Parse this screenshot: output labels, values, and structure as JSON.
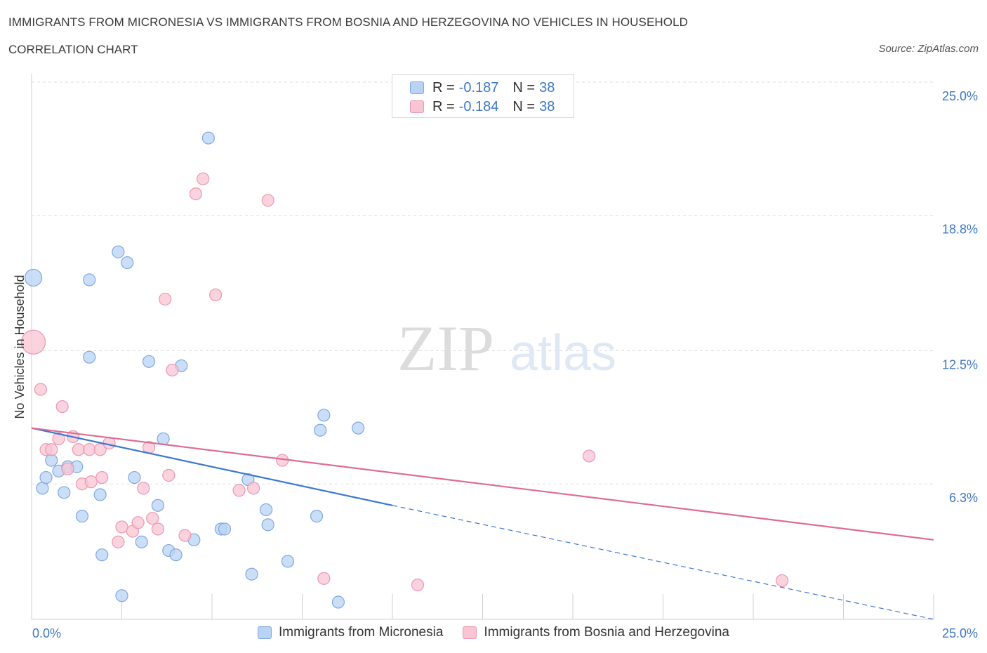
{
  "header": {
    "title": "IMMIGRANTS FROM MICRONESIA VS IMMIGRANTS FROM BOSNIA AND HERZEGOVINA NO VEHICLES IN HOUSEHOLD",
    "subtitle": "CORRELATION CHART",
    "source": "Source: ZipAtlas.com"
  },
  "watermark": {
    "zip": "ZIP",
    "atlas": "atlas"
  },
  "colors": {
    "blue_fill": "#b9d3f5",
    "blue_stroke": "#7fa9de",
    "blue_line": "#3a78d0",
    "pink_fill": "#f9c4d3",
    "pink_stroke": "#ec97b2",
    "pink_line": "#e06b93",
    "axis_text": "#3d78c4",
    "grid": "#dddddd"
  },
  "legend": {
    "rows": [
      {
        "r_label": "R =",
        "r_value": "-0.187",
        "n_label": "N =",
        "n_value": "38"
      },
      {
        "r_label": "R =",
        "r_value": "-0.184",
        "n_label": "N =",
        "n_value": "38"
      }
    ]
  },
  "chart_data": {
    "type": "scatter",
    "title": "IMMIGRANTS FROM MICRONESIA VS IMMIGRANTS FROM BOSNIA AND HERZEGOVINA NO VEHICLES IN HOUSEHOLD",
    "ylabel": "No Vehicles in Household",
    "xlim": [
      0,
      25
    ],
    "ylim": [
      0,
      25
    ],
    "x_tick_labels": [
      "0.0%",
      "25.0%"
    ],
    "y_tick_values": [
      6.3,
      12.5,
      18.8,
      25.0
    ],
    "y_tick_labels": [
      "6.3%",
      "12.5%",
      "18.8%",
      "25.0%"
    ],
    "grid": true,
    "legend_position": "top-center",
    "series": [
      {
        "name": "Immigrants from Micronesia",
        "color": "blue",
        "points": [
          [
            0.05,
            15.9,
            2
          ],
          [
            0.3,
            6.1,
            1
          ],
          [
            0.4,
            6.6,
            1
          ],
          [
            0.55,
            7.4,
            1
          ],
          [
            0.75,
            6.9,
            1
          ],
          [
            0.9,
            5.9,
            1
          ],
          [
            1.0,
            7.1,
            1
          ],
          [
            1.25,
            7.1,
            1
          ],
          [
            1.4,
            4.8,
            1
          ],
          [
            1.6,
            15.8,
            1
          ],
          [
            1.6,
            12.2,
            1
          ],
          [
            1.9,
            5.8,
            1
          ],
          [
            1.95,
            3.0,
            1
          ],
          [
            2.4,
            17.1,
            1
          ],
          [
            2.5,
            1.1,
            1
          ],
          [
            2.65,
            16.6,
            1
          ],
          [
            2.85,
            6.6,
            1
          ],
          [
            3.05,
            3.6,
            1
          ],
          [
            3.25,
            12.0,
            1
          ],
          [
            3.5,
            5.3,
            1
          ],
          [
            3.65,
            8.4,
            1
          ],
          [
            3.8,
            3.2,
            1
          ],
          [
            4.0,
            3.0,
            1
          ],
          [
            4.15,
            11.8,
            1
          ],
          [
            4.5,
            3.7,
            1
          ],
          [
            4.9,
            22.4,
            1
          ],
          [
            5.25,
            4.2,
            1
          ],
          [
            5.35,
            4.2,
            1
          ],
          [
            6.0,
            6.5,
            1
          ],
          [
            6.1,
            2.1,
            1
          ],
          [
            6.5,
            5.1,
            1
          ],
          [
            6.55,
            4.4,
            1
          ],
          [
            7.1,
            2.7,
            1
          ],
          [
            7.9,
            4.8,
            1
          ],
          [
            8.0,
            8.8,
            1
          ],
          [
            8.1,
            9.5,
            1
          ],
          [
            8.5,
            0.8,
            1
          ],
          [
            9.05,
            8.9,
            1
          ]
        ],
        "trend": {
          "x": [
            0,
            10
          ],
          "y": [
            8.9,
            5.3
          ]
        },
        "trend_dashed_extension": {
          "x": [
            10,
            25
          ],
          "y": [
            5.3,
            0.0
          ]
        }
      },
      {
        "name": "Immigrants from Bosnia and Herzegovina",
        "color": "pink",
        "points": [
          [
            0.05,
            12.9,
            3
          ],
          [
            0.25,
            10.7,
            1
          ],
          [
            0.4,
            7.9,
            1
          ],
          [
            0.55,
            7.9,
            1
          ],
          [
            0.75,
            8.4,
            1
          ],
          [
            0.85,
            9.9,
            1
          ],
          [
            1.0,
            7.0,
            1
          ],
          [
            1.15,
            8.5,
            1
          ],
          [
            1.3,
            7.9,
            1
          ],
          [
            1.4,
            6.3,
            1
          ],
          [
            1.6,
            7.9,
            1
          ],
          [
            1.65,
            6.4,
            1
          ],
          [
            1.9,
            7.9,
            1
          ],
          [
            1.95,
            6.6,
            1
          ],
          [
            2.15,
            8.2,
            1
          ],
          [
            2.4,
            3.6,
            1
          ],
          [
            2.5,
            4.3,
            1
          ],
          [
            2.8,
            4.1,
            1
          ],
          [
            2.95,
            4.5,
            1
          ],
          [
            3.1,
            6.1,
            1
          ],
          [
            3.25,
            8.0,
            1
          ],
          [
            3.35,
            4.7,
            1
          ],
          [
            3.5,
            4.2,
            1
          ],
          [
            3.7,
            14.9,
            1
          ],
          [
            3.8,
            6.7,
            1
          ],
          [
            3.9,
            11.6,
            1
          ],
          [
            4.25,
            3.9,
            1
          ],
          [
            4.55,
            19.8,
            1
          ],
          [
            4.75,
            20.5,
            1
          ],
          [
            5.1,
            15.1,
            1
          ],
          [
            5.75,
            6.0,
            1
          ],
          [
            6.15,
            6.1,
            1
          ],
          [
            6.55,
            19.5,
            1
          ],
          [
            6.95,
            7.4,
            1
          ],
          [
            8.1,
            1.9,
            1
          ],
          [
            10.7,
            1.6,
            1
          ],
          [
            15.45,
            7.6,
            1
          ],
          [
            20.8,
            1.8,
            1
          ]
        ],
        "trend": {
          "x": [
            0,
            25
          ],
          "y": [
            8.9,
            3.7
          ]
        }
      }
    ]
  }
}
